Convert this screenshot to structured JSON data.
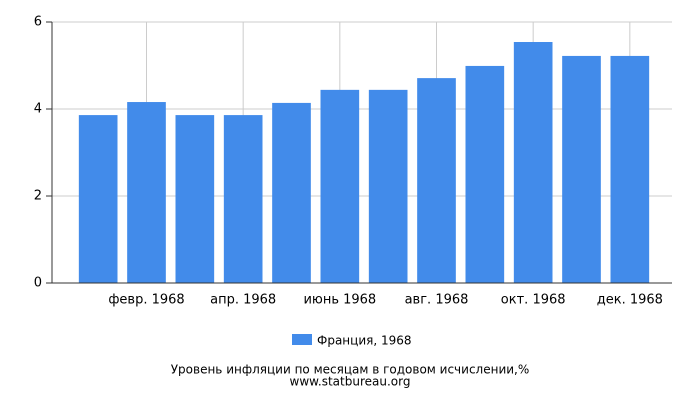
{
  "chart_data": {
    "type": "bar",
    "title": "Уровень инфляции по месяцам в годовом исчислении,%",
    "source": "www.statbureau.org",
    "categories": [
      null,
      "февр. 1968",
      null,
      "апр. 1968",
      null,
      "июнь 1968",
      null,
      "авг. 1968",
      null,
      "окт. 1968",
      null,
      "дек. 1968"
    ],
    "series": [
      {
        "name": "Франция, 1968",
        "color": "#428bea",
        "values": [
          3.86,
          4.16,
          3.86,
          3.86,
          4.14,
          4.44,
          4.44,
          4.71,
          4.99,
          5.54,
          5.22,
          5.22
        ]
      }
    ],
    "ylim": [
      0,
      6
    ],
    "yticks": [
      0,
      2,
      4,
      6
    ],
    "grid": true
  }
}
